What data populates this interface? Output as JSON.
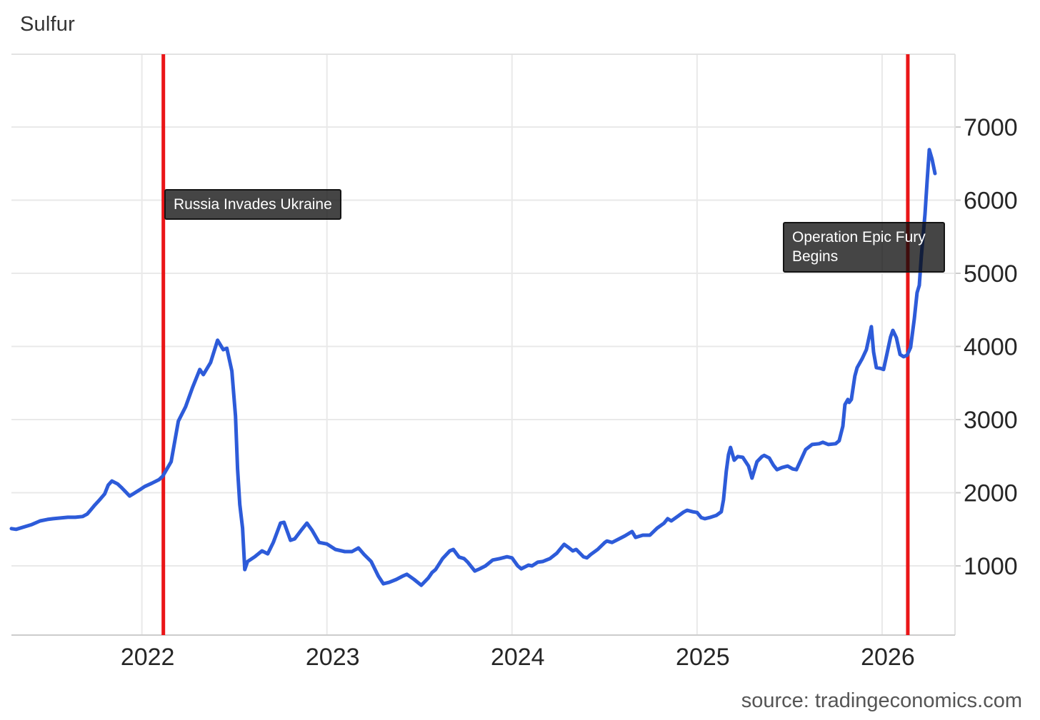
{
  "chart": {
    "title": "Sulfur",
    "source": "source: tradingeconomics.com"
  },
  "annotations": [
    {
      "label": "Russia Invades Ukraine"
    },
    {
      "label": "Operation Epic Fury Begins"
    }
  ],
  "chart_data": {
    "type": "line",
    "title": "Sulfur",
    "series_name": "Sulfur price",
    "legend": "none",
    "grid": "on",
    "colors": {
      "line": "#2d5bd9",
      "event_line": "#ea1517",
      "grid": "#e9e9e9",
      "axis": "#cccccc",
      "tick_text": "#262626",
      "annotation_bg": "rgba(10,10,10,0.76)",
      "annotation_text": "#ffffff"
    },
    "x_axis": {
      "min": 2021.295,
      "max": 2026.394,
      "ticks": [
        2022,
        2023,
        2024,
        2025,
        2026
      ],
      "tick_labels": [
        "2022",
        "2023",
        "2024",
        "2025",
        "2026"
      ]
    },
    "y_axis": {
      "min": 54,
      "max": 7995,
      "ticks": [
        1000,
        2000,
        3000,
        4000,
        5000,
        6000,
        7000
      ],
      "tick_labels": [
        "1000",
        "2000",
        "3000",
        "4000",
        "5000",
        "6000",
        "7000"
      ]
    },
    "events": [
      {
        "x": 2022.116,
        "label": "Russia Invades Ukraine"
      },
      {
        "x": 2026.139,
        "label": "Operation Epic Fury Begins"
      }
    ],
    "points": [
      [
        2021.295,
        1510
      ],
      [
        2021.32,
        1500
      ],
      [
        2021.405,
        1565
      ],
      [
        2021.45,
        1615
      ],
      [
        2021.49,
        1635
      ],
      [
        2021.52,
        1645
      ],
      [
        2021.56,
        1655
      ],
      [
        2021.6,
        1665
      ],
      [
        2021.64,
        1665
      ],
      [
        2021.68,
        1675
      ],
      [
        2021.705,
        1710
      ],
      [
        2021.722,
        1760
      ],
      [
        2021.745,
        1830
      ],
      [
        2021.772,
        1905
      ],
      [
        2021.799,
        1985
      ],
      [
        2021.818,
        2105
      ],
      [
        2021.838,
        2160
      ],
      [
        2021.869,
        2120
      ],
      [
        2021.888,
        2075
      ],
      [
        2021.915,
        2005
      ],
      [
        2021.934,
        1955
      ],
      [
        2021.953,
        1985
      ],
      [
        2021.985,
        2035
      ],
      [
        2022.015,
        2085
      ],
      [
        2022.054,
        2130
      ],
      [
        2022.093,
        2180
      ],
      [
        2022.112,
        2225
      ],
      [
        2022.158,
        2425
      ],
      [
        2022.197,
        2980
      ],
      [
        2022.236,
        3175
      ],
      [
        2022.274,
        3440
      ],
      [
        2022.313,
        3685
      ],
      [
        2022.332,
        3615
      ],
      [
        2022.371,
        3780
      ],
      [
        2022.409,
        4085
      ],
      [
        2022.44,
        3955
      ],
      [
        2022.459,
        3975
      ],
      [
        2022.486,
        3665
      ],
      [
        2022.506,
        3050
      ],
      [
        2022.517,
        2325
      ],
      [
        2022.529,
        1840
      ],
      [
        2022.544,
        1515
      ],
      [
        2022.556,
        950
      ],
      [
        2022.571,
        1060
      ],
      [
        2022.61,
        1125
      ],
      [
        2022.649,
        1205
      ],
      [
        2022.68,
        1165
      ],
      [
        2022.71,
        1320
      ],
      [
        2022.749,
        1585
      ],
      [
        2022.768,
        1595
      ],
      [
        2022.803,
        1350
      ],
      [
        2022.826,
        1370
      ],
      [
        2022.865,
        1500
      ],
      [
        2022.892,
        1585
      ],
      [
        2022.919,
        1490
      ],
      [
        2022.958,
        1320
      ],
      [
        2023.0,
        1300
      ],
      [
        2023.046,
        1225
      ],
      [
        2023.097,
        1195
      ],
      [
        2023.135,
        1195
      ],
      [
        2023.17,
        1245
      ],
      [
        2023.201,
        1155
      ],
      [
        2023.239,
        1060
      ],
      [
        2023.278,
        860
      ],
      [
        2023.305,
        755
      ],
      [
        2023.336,
        775
      ],
      [
        2023.375,
        815
      ],
      [
        2023.413,
        865
      ],
      [
        2023.432,
        885
      ],
      [
        2023.471,
        815
      ],
      [
        2023.51,
        735
      ],
      [
        2023.548,
        835
      ],
      [
        2023.568,
        910
      ],
      [
        2023.587,
        950
      ],
      [
        2023.625,
        1100
      ],
      [
        2023.664,
        1205
      ],
      [
        2023.683,
        1225
      ],
      [
        2023.714,
        1120
      ],
      [
        2023.741,
        1100
      ],
      [
        2023.761,
        1050
      ],
      [
        2023.799,
        930
      ],
      [
        2023.826,
        960
      ],
      [
        2023.857,
        1000
      ],
      [
        2023.896,
        1080
      ],
      [
        2023.934,
        1100
      ],
      [
        2023.973,
        1125
      ],
      [
        2024.0,
        1110
      ],
      [
        2024.031,
        1000
      ],
      [
        2024.05,
        960
      ],
      [
        2024.089,
        1010
      ],
      [
        2024.108,
        1000
      ],
      [
        2024.139,
        1050
      ],
      [
        2024.166,
        1060
      ],
      [
        2024.205,
        1100
      ],
      [
        2024.243,
        1175
      ],
      [
        2024.282,
        1295
      ],
      [
        2024.309,
        1245
      ],
      [
        2024.328,
        1205
      ],
      [
        2024.347,
        1225
      ],
      [
        2024.386,
        1125
      ],
      [
        2024.405,
        1110
      ],
      [
        2024.425,
        1155
      ],
      [
        2024.463,
        1225
      ],
      [
        2024.502,
        1320
      ],
      [
        2024.513,
        1340
      ],
      [
        2024.541,
        1320
      ],
      [
        2024.579,
        1370
      ],
      [
        2024.61,
        1410
      ],
      [
        2024.649,
        1470
      ],
      [
        2024.668,
        1390
      ],
      [
        2024.707,
        1420
      ],
      [
        2024.745,
        1420
      ],
      [
        2024.784,
        1515
      ],
      [
        2024.822,
        1585
      ],
      [
        2024.841,
        1645
      ],
      [
        2024.861,
        1615
      ],
      [
        2024.9,
        1685
      ],
      [
        2024.927,
        1735
      ],
      [
        2024.946,
        1760
      ],
      [
        2024.977,
        1740
      ],
      [
        2025.0,
        1730
      ],
      [
        2025.023,
        1660
      ],
      [
        2025.042,
        1645
      ],
      [
        2025.073,
        1665
      ],
      [
        2025.104,
        1690
      ],
      [
        2025.131,
        1740
      ],
      [
        2025.143,
        1905
      ],
      [
        2025.158,
        2295
      ],
      [
        2025.17,
        2520
      ],
      [
        2025.181,
        2620
      ],
      [
        2025.201,
        2445
      ],
      [
        2025.22,
        2495
      ],
      [
        2025.247,
        2485
      ],
      [
        2025.278,
        2365
      ],
      [
        2025.297,
        2200
      ],
      [
        2025.324,
        2425
      ],
      [
        2025.351,
        2495
      ],
      [
        2025.363,
        2510
      ],
      [
        2025.39,
        2475
      ],
      [
        2025.413,
        2375
      ],
      [
        2025.432,
        2315
      ],
      [
        2025.459,
        2345
      ],
      [
        2025.49,
        2365
      ],
      [
        2025.517,
        2325
      ],
      [
        2025.537,
        2315
      ],
      [
        2025.564,
        2465
      ],
      [
        2025.587,
        2590
      ],
      [
        2025.622,
        2660
      ],
      [
        2025.66,
        2670
      ],
      [
        2025.68,
        2690
      ],
      [
        2025.71,
        2660
      ],
      [
        2025.749,
        2670
      ],
      [
        2025.768,
        2710
      ],
      [
        2025.788,
        2910
      ],
      [
        2025.799,
        3205
      ],
      [
        2025.815,
        3275
      ],
      [
        2025.822,
        3235
      ],
      [
        2025.834,
        3275
      ],
      [
        2025.853,
        3595
      ],
      [
        2025.865,
        3710
      ],
      [
        2025.892,
        3830
      ],
      [
        2025.915,
        3955
      ],
      [
        2025.942,
        4270
      ],
      [
        2025.954,
        3925
      ],
      [
        2025.969,
        3710
      ],
      [
        2025.992,
        3700
      ],
      [
        2026.008,
        3685
      ],
      [
        2026.027,
        3905
      ],
      [
        2026.046,
        4130
      ],
      [
        2026.058,
        4220
      ],
      [
        2026.077,
        4120
      ],
      [
        2026.097,
        3890
      ],
      [
        2026.116,
        3860
      ],
      [
        2026.135,
        3880
      ],
      [
        2026.154,
        3985
      ],
      [
        2026.174,
        4375
      ],
      [
        2026.189,
        4735
      ],
      [
        2026.201,
        4835
      ],
      [
        2026.212,
        5225
      ],
      [
        2026.232,
        5810
      ],
      [
        2026.243,
        6250
      ],
      [
        2026.255,
        6690
      ],
      [
        2026.27,
        6560
      ],
      [
        2026.286,
        6365
      ]
    ]
  }
}
